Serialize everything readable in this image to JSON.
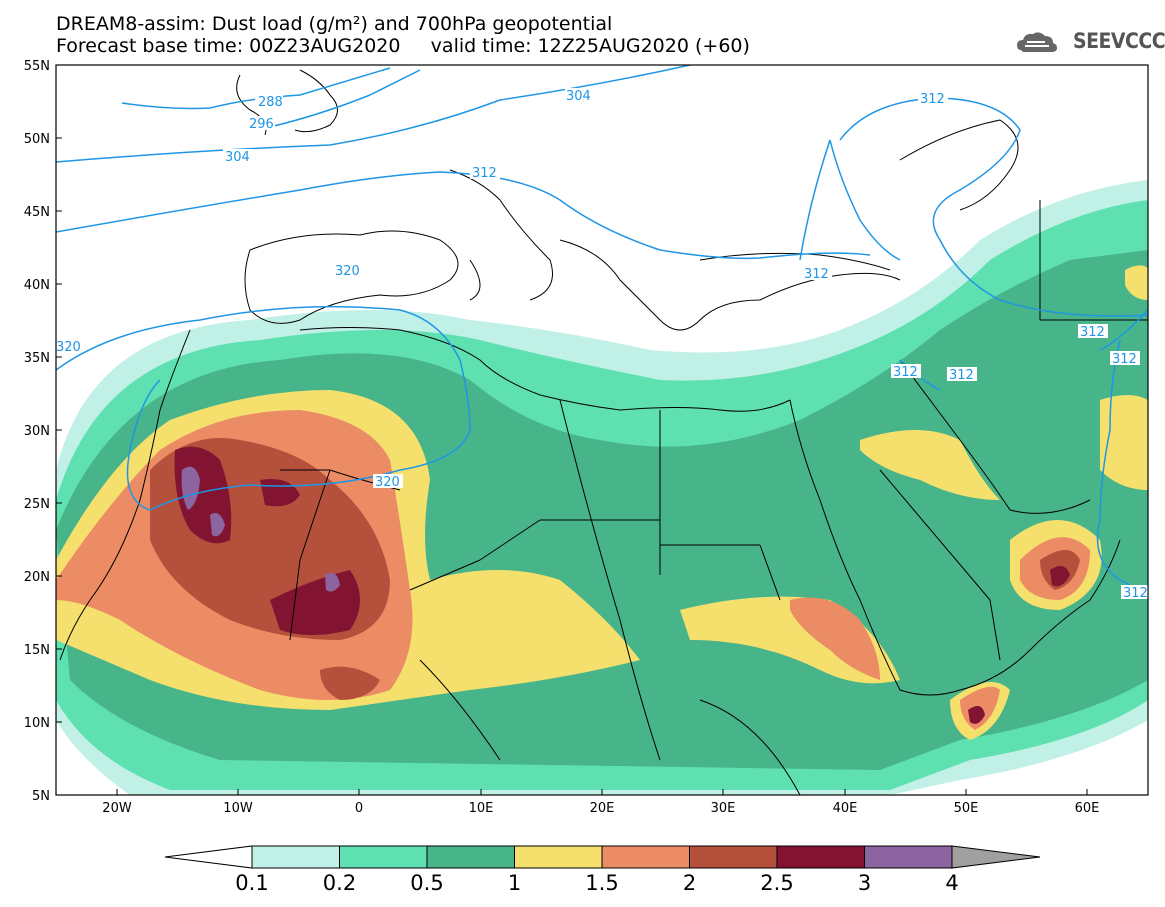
{
  "title": {
    "line1": "DREAM8-assim: Dust load (g/m²) and 700hPa geopotential",
    "line2": "Forecast base time: 00Z23AUG2020     valid time: 12Z25AUG2020 (+60)"
  },
  "logo": {
    "text": "SEEVCCC",
    "icon": "cloud-logo-icon"
  },
  "axes": {
    "lat_labels": [
      "55N",
      "50N",
      "45N",
      "40N",
      "35N",
      "30N",
      "25N",
      "20N",
      "15N",
      "10N",
      "5N"
    ],
    "lon_labels": [
      "20W",
      "10W",
      "0",
      "10E",
      "20E",
      "30E",
      "40E",
      "50E",
      "60E"
    ]
  },
  "contour_labels": [
    "288",
    "296",
    "304",
    "304",
    "312",
    "312",
    "312",
    "320",
    "320",
    "320",
    "312",
    "312",
    "312",
    "312",
    "312"
  ],
  "colorbar": {
    "levels": [
      "0.1",
      "0.2",
      "0.5",
      "1",
      "1.5",
      "2",
      "2.5",
      "3",
      "4"
    ],
    "colors": [
      "#c0f0e6",
      "#5ee0b0",
      "#48b48a",
      "#f5e06e",
      "#ec8c64",
      "#b4503c",
      "#821432",
      "#8c64a0"
    ],
    "under_color": "#ffffff",
    "over_color": "#a0a0a0"
  },
  "colors": {
    "contour": "#1e96e6",
    "border": "#000000"
  }
}
